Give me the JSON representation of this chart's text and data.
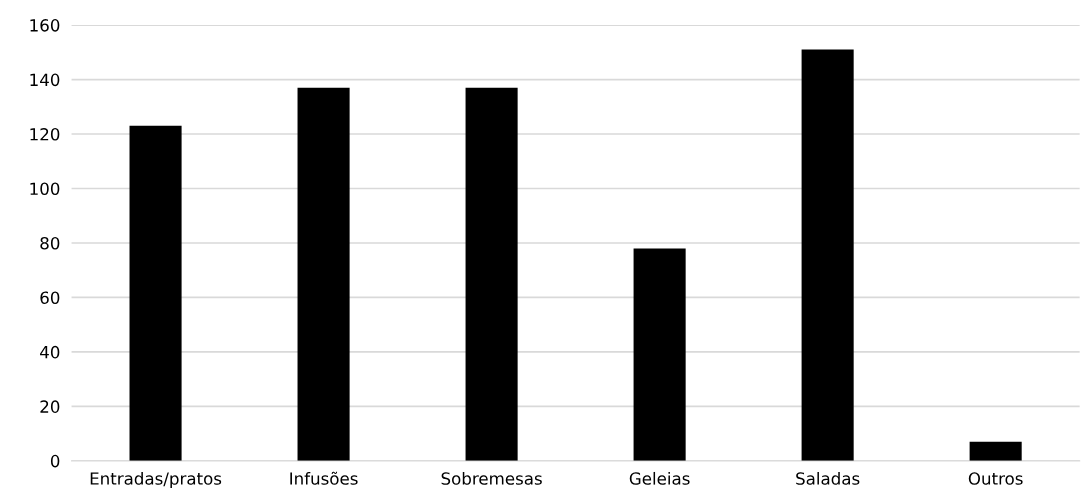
{
  "chart_data": {
    "type": "bar",
    "categories": [
      "Entradas/pratos",
      "Infusões",
      "Sobremesas",
      "Geleias",
      "Saladas",
      "Outros"
    ],
    "values": [
      123,
      137,
      137,
      78,
      151,
      7
    ],
    "color": "#000000",
    "ylim": [
      0,
      160
    ],
    "yticks": [
      0,
      20,
      40,
      60,
      80,
      100,
      120,
      140,
      160
    ],
    "grid": "y"
  }
}
